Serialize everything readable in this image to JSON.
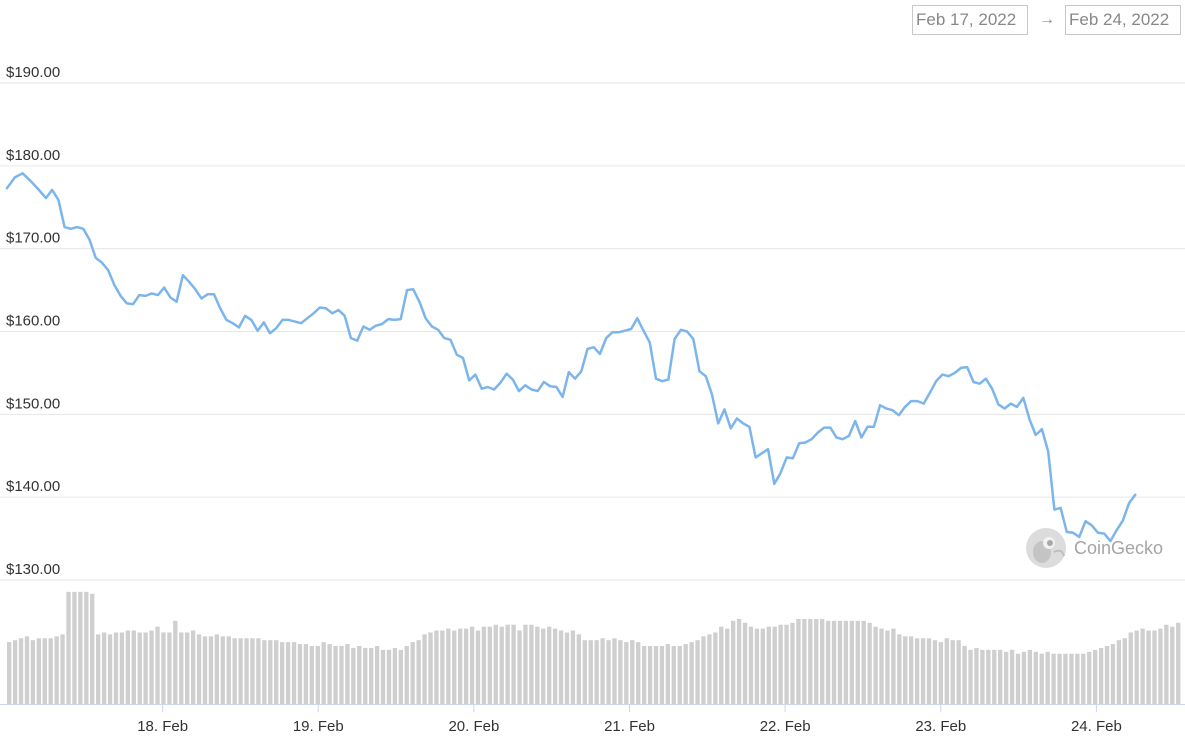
{
  "date_range": {
    "start": "Feb 17, 2022",
    "arrow": "→",
    "end": "Feb 24, 2022"
  },
  "watermark": {
    "text": "CoinGecko",
    "icon": "coingecko-logo-icon"
  },
  "colors": {
    "line": "#7cb5ec",
    "volume": "#cfcfcf",
    "grid": "#e6e6e6"
  },
  "chart_data": {
    "type": "line",
    "title": "",
    "xlabel": "",
    "ylabel": "",
    "ylim": [
      130,
      190
    ],
    "yticks": [
      130,
      140,
      150,
      160,
      170,
      180,
      190
    ],
    "ytick_labels": [
      "$130.00",
      "$140.00",
      "$150.00",
      "$160.00",
      "$170.00",
      "$180.00",
      "$190.00"
    ],
    "xlim": [
      0,
      7.55
    ],
    "xticks": [
      1,
      2,
      3,
      4,
      5,
      6,
      7
    ],
    "xtick_labels": [
      "18. Feb",
      "19. Feb",
      "20. Feb",
      "21. Feb",
      "22. Feb",
      "23. Feb",
      "24. Feb"
    ],
    "grid": true,
    "legend": "none",
    "series": [
      {
        "name": "",
        "kind": "price",
        "points": [
          [
            0,
            177.3
          ],
          [
            0.05,
            178.6
          ],
          [
            0.1,
            179.1
          ],
          [
            0.15,
            178.2
          ],
          [
            0.2,
            177.2
          ],
          [
            0.25,
            176.1
          ],
          [
            0.29,
            177.1
          ],
          [
            0.33,
            175.9
          ],
          [
            0.37,
            172.6
          ],
          [
            0.41,
            172.4
          ],
          [
            0.45,
            172.6
          ],
          [
            0.49,
            172.4
          ],
          [
            0.53,
            171.1
          ],
          [
            0.57,
            168.9
          ],
          [
            0.61,
            168.3
          ],
          [
            0.65,
            167.4
          ],
          [
            0.69,
            165.6
          ],
          [
            0.73,
            164.3
          ],
          [
            0.77,
            163.4
          ],
          [
            0.81,
            163.3
          ],
          [
            0.85,
            164.4
          ],
          [
            0.89,
            164.3
          ],
          [
            0.93,
            164.6
          ],
          [
            0.97,
            164.4
          ],
          [
            1.01,
            165.3
          ],
          [
            1.05,
            164.1
          ],
          [
            1.09,
            163.6
          ],
          [
            1.13,
            166.8
          ],
          [
            1.17,
            166.0
          ],
          [
            1.21,
            165.1
          ],
          [
            1.25,
            164.0
          ],
          [
            1.29,
            164.5
          ],
          [
            1.33,
            164.5
          ],
          [
            1.37,
            162.8
          ],
          [
            1.41,
            161.4
          ],
          [
            1.45,
            161.0
          ],
          [
            1.49,
            160.5
          ],
          [
            1.53,
            161.9
          ],
          [
            1.57,
            161.4
          ],
          [
            1.61,
            160.1
          ],
          [
            1.65,
            161.1
          ],
          [
            1.69,
            159.8
          ],
          [
            1.73,
            160.4
          ],
          [
            1.77,
            161.4
          ],
          [
            1.81,
            161.4
          ],
          [
            1.85,
            161.2
          ],
          [
            1.89,
            161.0
          ],
          [
            1.93,
            161.6
          ],
          [
            1.97,
            162.2
          ],
          [
            2.01,
            162.9
          ],
          [
            2.05,
            162.8
          ],
          [
            2.09,
            162.2
          ],
          [
            2.13,
            162.6
          ],
          [
            2.17,
            161.9
          ],
          [
            2.21,
            159.2
          ],
          [
            2.25,
            158.9
          ],
          [
            2.29,
            160.6
          ],
          [
            2.33,
            160.2
          ],
          [
            2.37,
            160.7
          ],
          [
            2.41,
            160.9
          ],
          [
            2.45,
            161.5
          ],
          [
            2.49,
            161.4
          ],
          [
            2.53,
            161.5
          ],
          [
            2.57,
            165.0
          ],
          [
            2.61,
            165.1
          ],
          [
            2.65,
            163.6
          ],
          [
            2.69,
            161.6
          ],
          [
            2.73,
            160.6
          ],
          [
            2.77,
            160.2
          ],
          [
            2.81,
            159.2
          ],
          [
            2.85,
            159.0
          ],
          [
            2.89,
            157.2
          ],
          [
            2.93,
            156.8
          ],
          [
            2.97,
            154.1
          ],
          [
            3.01,
            154.8
          ],
          [
            3.05,
            153.1
          ],
          [
            3.09,
            153.3
          ],
          [
            3.13,
            153.0
          ],
          [
            3.17,
            153.8
          ],
          [
            3.21,
            154.9
          ],
          [
            3.25,
            154.2
          ],
          [
            3.29,
            152.8
          ],
          [
            3.33,
            153.5
          ],
          [
            3.37,
            153.0
          ],
          [
            3.41,
            152.8
          ],
          [
            3.45,
            153.9
          ],
          [
            3.49,
            153.4
          ],
          [
            3.53,
            153.3
          ],
          [
            3.57,
            152.1
          ],
          [
            3.61,
            155.1
          ],
          [
            3.65,
            154.3
          ],
          [
            3.69,
            155.2
          ],
          [
            3.73,
            157.9
          ],
          [
            3.77,
            158.1
          ],
          [
            3.81,
            157.3
          ],
          [
            3.85,
            159.2
          ],
          [
            3.89,
            159.9
          ],
          [
            3.93,
            159.9
          ],
          [
            3.97,
            160.1
          ],
          [
            4.01,
            160.3
          ],
          [
            4.05,
            161.6
          ],
          [
            4.09,
            160.1
          ],
          [
            4.13,
            158.7
          ],
          [
            4.17,
            154.3
          ],
          [
            4.21,
            154.0
          ],
          [
            4.25,
            154.2
          ],
          [
            4.29,
            159.1
          ],
          [
            4.33,
            160.2
          ],
          [
            4.37,
            160.0
          ],
          [
            4.41,
            159.1
          ],
          [
            4.45,
            155.2
          ],
          [
            4.49,
            154.6
          ],
          [
            4.53,
            152.4
          ],
          [
            4.57,
            148.9
          ],
          [
            4.61,
            150.6
          ],
          [
            4.65,
            148.3
          ],
          [
            4.69,
            149.5
          ],
          [
            4.73,
            148.9
          ],
          [
            4.77,
            148.5
          ],
          [
            4.81,
            144.8
          ],
          [
            4.85,
            145.3
          ],
          [
            4.89,
            145.8
          ],
          [
            4.93,
            141.6
          ],
          [
            4.97,
            142.9
          ],
          [
            5.01,
            144.8
          ],
          [
            5.05,
            144.7
          ],
          [
            5.09,
            146.5
          ],
          [
            5.13,
            146.6
          ],
          [
            5.17,
            147.0
          ],
          [
            5.21,
            147.8
          ],
          [
            5.25,
            148.4
          ],
          [
            5.29,
            148.4
          ],
          [
            5.33,
            147.2
          ],
          [
            5.37,
            147.0
          ],
          [
            5.41,
            147.4
          ],
          [
            5.45,
            149.2
          ],
          [
            5.49,
            147.2
          ],
          [
            5.53,
            148.5
          ],
          [
            5.57,
            148.5
          ],
          [
            5.61,
            151.1
          ],
          [
            5.65,
            150.7
          ],
          [
            5.69,
            150.5
          ],
          [
            5.73,
            149.9
          ],
          [
            5.77,
            150.9
          ],
          [
            5.81,
            151.6
          ],
          [
            5.85,
            151.6
          ],
          [
            5.89,
            151.3
          ],
          [
            5.93,
            152.6
          ],
          [
            5.97,
            154.0
          ],
          [
            6.01,
            154.8
          ],
          [
            6.05,
            154.6
          ],
          [
            6.09,
            155.0
          ],
          [
            6.13,
            155.6
          ],
          [
            6.17,
            155.7
          ],
          [
            6.21,
            153.9
          ],
          [
            6.25,
            153.7
          ],
          [
            6.29,
            154.3
          ],
          [
            6.33,
            153.1
          ],
          [
            6.37,
            151.2
          ],
          [
            6.41,
            150.7
          ],
          [
            6.45,
            151.3
          ],
          [
            6.49,
            150.9
          ],
          [
            6.53,
            152.0
          ],
          [
            6.57,
            149.4
          ],
          [
            6.61,
            147.5
          ],
          [
            6.65,
            148.2
          ],
          [
            6.69,
            145.5
          ],
          [
            6.73,
            138.5
          ],
          [
            6.77,
            138.7
          ],
          [
            6.81,
            135.8
          ],
          [
            6.85,
            135.7
          ],
          [
            6.89,
            135.2
          ],
          [
            6.93,
            137.1
          ],
          [
            6.97,
            136.6
          ],
          [
            7.01,
            135.7
          ],
          [
            7.05,
            135.6
          ],
          [
            7.09,
            134.7
          ],
          [
            7.13,
            136.0
          ],
          [
            7.17,
            137.2
          ],
          [
            7.21,
            139.3
          ],
          [
            7.25,
            140.3
          ]
        ]
      },
      {
        "name": "",
        "kind": "volume",
        "note_units": "relative",
        "values": [
          32,
          33,
          34,
          35,
          33,
          34,
          34,
          34,
          35,
          36,
          58,
          58,
          58,
          58,
          57,
          36,
          37,
          36,
          37,
          37,
          38,
          38,
          37,
          37,
          38,
          40,
          37,
          37,
          43,
          37,
          37,
          38,
          36,
          35,
          35,
          36,
          35,
          35,
          34,
          34,
          34,
          34,
          34,
          33,
          33,
          33,
          32,
          32,
          32,
          31,
          31,
          30,
          30,
          32,
          31,
          30,
          30,
          31,
          29,
          30,
          29,
          29,
          30,
          28,
          28,
          29,
          28,
          30,
          32,
          33,
          36,
          37,
          38,
          38,
          39,
          38,
          39,
          39,
          40,
          38,
          40,
          40,
          41,
          40,
          41,
          41,
          38,
          41,
          41,
          40,
          39,
          40,
          39,
          38,
          37,
          38,
          36,
          33,
          33,
          33,
          34,
          33,
          34,
          33,
          32,
          33,
          32,
          30,
          30,
          30,
          30,
          31,
          30,
          30,
          31,
          32,
          33,
          35,
          36,
          37,
          40,
          39,
          43,
          44,
          42,
          40,
          39,
          39,
          40,
          40,
          41,
          41,
          42,
          44,
          44,
          44,
          44,
          44,
          43,
          43,
          43,
          43,
          43,
          43,
          43,
          42,
          40,
          39,
          38,
          39,
          36,
          35,
          35,
          34,
          34,
          34,
          33,
          32,
          34,
          33,
          33,
          30,
          28,
          29,
          28,
          28,
          28,
          28,
          27,
          28,
          26,
          27,
          28,
          27,
          26,
          27,
          26,
          26,
          26,
          26,
          26,
          26,
          27,
          28,
          29,
          30,
          31,
          33,
          34,
          37,
          38,
          39,
          38,
          38,
          39,
          41,
          40,
          42
        ]
      }
    ]
  }
}
